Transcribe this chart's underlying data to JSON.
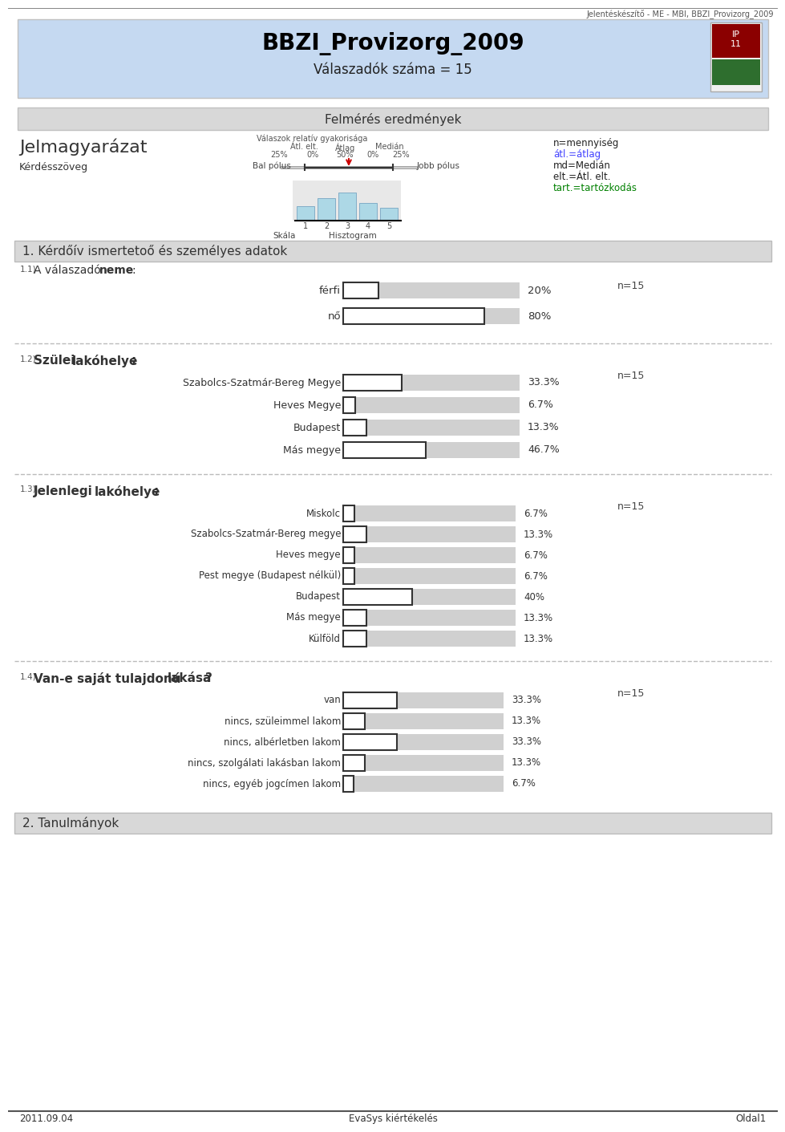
{
  "title": "BBZI_Provizorg_2009",
  "subtitle": "Válaszadók száma = 15",
  "header_text": "Jelentéskészítő - ME - MBI, BBZI_Provizorg_2009",
  "survey_title": "Felmérés eredmények",
  "section1_title": "1. Kérdőív ismertetoő és személyes adatok",
  "section2_title": "2. Tanulmányok",
  "footer_left": "2011.09.04",
  "footer_center": "EvaSys kiértékelés",
  "footer_right": "Oldal1",
  "q1_number": "1.1)",
  "q1_title": "A válaszadó neme:",
  "q1_n": "n=15",
  "q1_items": [
    "férfi",
    "nő"
  ],
  "q1_values": [
    20,
    80
  ],
  "q2_number": "1.2)",
  "q2_title": "Szülei lakóhelye:",
  "q2_n": "n=15",
  "q2_items": [
    "Szabolcs-Szatmár-Bereg Megye",
    "Heves Megye",
    "Budapest",
    "Más megye"
  ],
  "q2_values": [
    33.3,
    6.7,
    13.3,
    46.7
  ],
  "q3_number": "1.3)",
  "q3_title": "Jelenlegi lakóhelye:",
  "q3_n": "n=15",
  "q3_items": [
    "Miskolc",
    "Szabolcs-Szatmár-Bereg megye",
    "Heves megye",
    "Pest megye (Budapest nélkül)",
    "Budapest",
    "Más megye",
    "Külföld"
  ],
  "q3_values": [
    6.7,
    13.3,
    6.7,
    6.7,
    40,
    13.3,
    13.3
  ],
  "q4_number": "1.4)",
  "q4_title": "Van-e saját tulajdonú lakása?",
  "q4_n": "n=15",
  "q4_items": [
    "van",
    "nincs, szüleimmel lakom",
    "nincs, albérletben lakom",
    "nincs, szolgálati lakásban lakom",
    "nincs, egyéb jogcímen lakom"
  ],
  "q4_values": [
    33.3,
    13.3,
    33.3,
    13.3,
    6.7
  ],
  "bg_color": "#ffffff",
  "header_bg": "#c5d9f1",
  "survey_bar_bg": "#d8d8d8",
  "section_bar_bg": "#d8d8d8",
  "bar_fill": "#ffffff",
  "bar_bg": "#d0d0d0",
  "bar_border": "#333333",
  "dashed_line_color": "#aaaaaa",
  "text_color": "#000000",
  "green_text": "#008000",
  "blue_text": "#4040ff",
  "red_color": "#cc0000",
  "legend_text_color": "#555555",
  "hist_bar_color": "#add8e6"
}
